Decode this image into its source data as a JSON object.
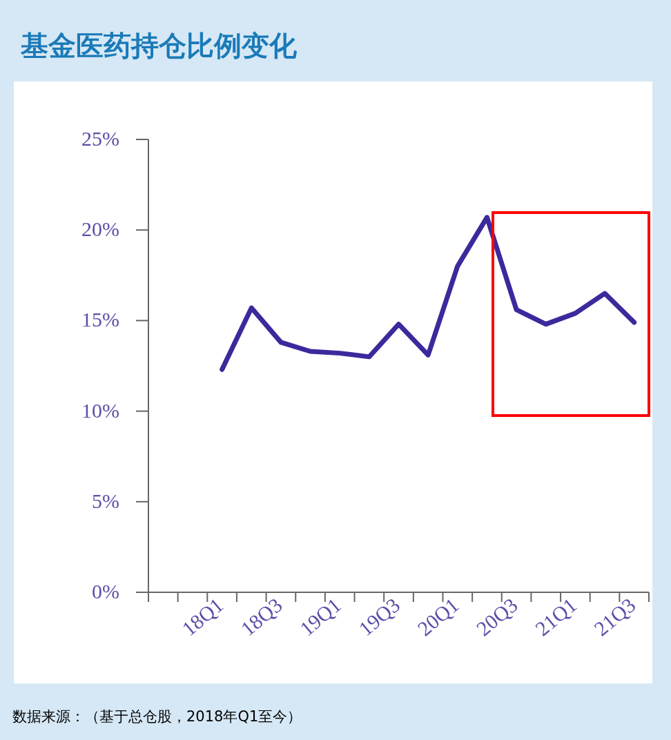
{
  "chart_data": {
    "type": "line",
    "title": "基金医药持仓比例变化",
    "categories": [
      null,
      null,
      "18Q1",
      null,
      "18Q3",
      null,
      "19Q1",
      null,
      "19Q3",
      null,
      "20Q1",
      null,
      "20Q3",
      null,
      "21Q1",
      null,
      "21Q3"
    ],
    "series": [
      {
        "color": "#3b2a9c",
        "values": [
          null,
          null,
          12.3,
          15.7,
          13.8,
          13.3,
          13.2,
          13.0,
          14.8,
          13.1,
          18.0,
          20.7,
          15.6,
          14.8,
          15.4,
          16.5,
          14.9
        ]
      }
    ],
    "ylim": [
      0,
      25
    ],
    "yticks": [
      {
        "value": 0,
        "label": "0%"
      },
      {
        "value": 5,
        "label": "5%"
      },
      {
        "value": 10,
        "label": "10%"
      },
      {
        "value": 15,
        "label": "15%"
      },
      {
        "value": 20,
        "label": "20%"
      },
      {
        "value": 25,
        "label": "25%"
      }
    ],
    "grid": false,
    "marker": "none",
    "line_style": "solid",
    "annotations": [
      "数据来源：（基于总仓股，2018年Q1至今）"
    ]
  }
}
